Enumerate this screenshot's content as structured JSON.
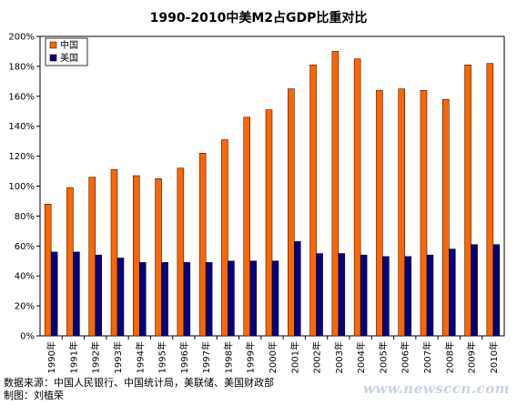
{
  "chart_data": {
    "type": "bar",
    "title": "1990-2010中美M2占GDP比重对比",
    "categories": [
      "1990年",
      "1991年",
      "1992年",
      "1993年",
      "1994年",
      "1995年",
      "1996年",
      "1997年",
      "1998年",
      "1999年",
      "2000年",
      "2001年",
      "2002年",
      "2003年",
      "2004年",
      "2005年",
      "2006年",
      "2007年",
      "2008年",
      "2009年",
      "2010年"
    ],
    "series": [
      {
        "name": "中国",
        "color": "#ff6600",
        "values": [
          88,
          99,
          106,
          111,
          107,
          105,
          112,
          122,
          131,
          146,
          151,
          165,
          181,
          190,
          185,
          164,
          165,
          164,
          158,
          181,
          182
        ]
      },
      {
        "name": "美国",
        "color": "#000080",
        "values": [
          56,
          56,
          54,
          52,
          49,
          49,
          49,
          49,
          50,
          50,
          50,
          63,
          55,
          55,
          54,
          53,
          53,
          54,
          58,
          61,
          61
        ]
      }
    ],
    "ylim": [
      0,
      200
    ],
    "yticks": [
      "0%",
      "20%",
      "40%",
      "60%",
      "80%",
      "100%",
      "120%",
      "140%",
      "160%",
      "180%",
      "200%"
    ],
    "legend": "top-left"
  },
  "footer": {
    "source": "数据来源：中国人民银行、中国统计局，美联储、美国财政部",
    "author": "制图：刘植荣"
  },
  "watermark": "www.newsccn.com"
}
